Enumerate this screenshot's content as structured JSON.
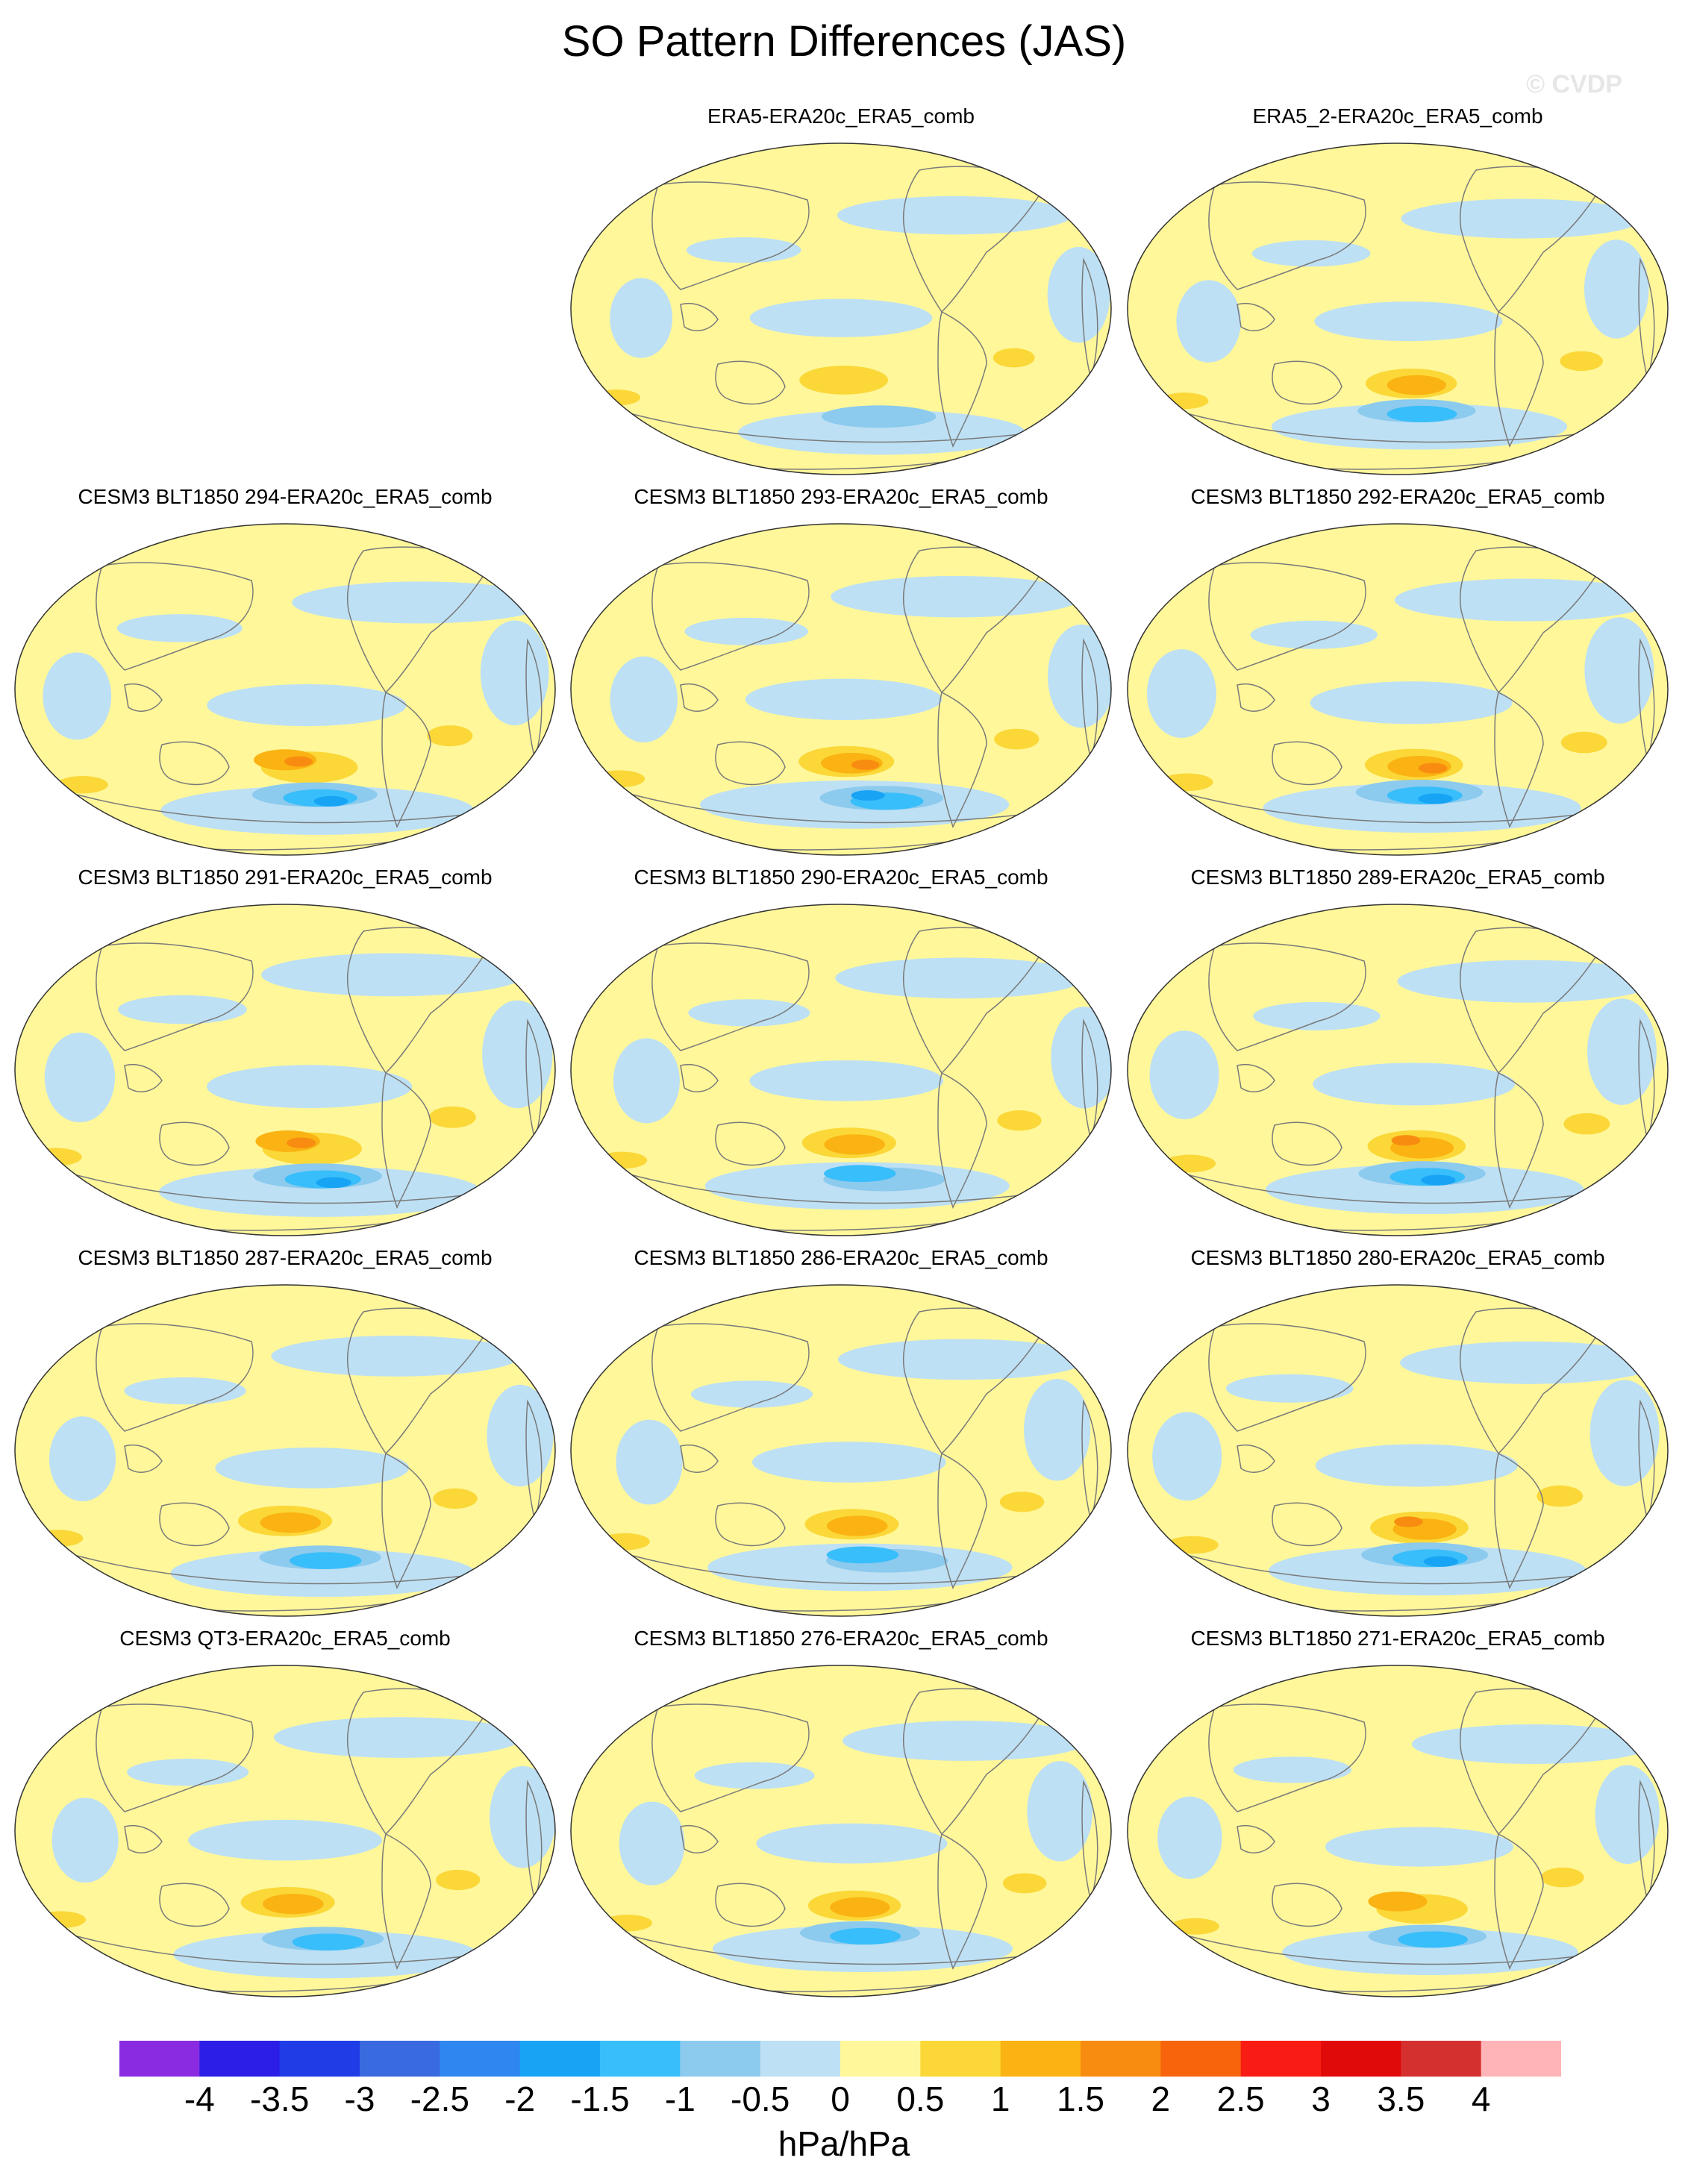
{
  "title": "SO Pattern Differences (JAS)",
  "watermark": "© CVDP",
  "panels": [
    {
      "label": "ERA5-ERA20c_ERA5_comb",
      "amplitude": 0.55
    },
    {
      "label": "ERA5_2-ERA20c_ERA5_comb",
      "amplitude": 0.65
    },
    {
      "label": "CESM3 BLT1850 294-ERA20c_ERA5_comb",
      "amplitude": 0.85
    },
    {
      "label": "CESM3 BLT1850 293-ERA20c_ERA5_comb",
      "amplitude": 0.8
    },
    {
      "label": "CESM3 BLT1850 292-ERA20c_ERA5_comb",
      "amplitude": 0.9
    },
    {
      "label": "CESM3 BLT1850 291-ERA20c_ERA5_comb",
      "amplitude": 0.95
    },
    {
      "label": "CESM3 BLT1850 290-ERA20c_ERA5_comb",
      "amplitude": 0.75
    },
    {
      "label": "CESM3 BLT1850 289-ERA20c_ERA5_comb",
      "amplitude": 0.9
    },
    {
      "label": "CESM3 BLT1850 287-ERA20c_ERA5_comb",
      "amplitude": 0.75
    },
    {
      "label": "CESM3 BLT1850 286-ERA20c_ERA5_comb",
      "amplitude": 0.75
    },
    {
      "label": "CESM3 BLT1850 280-ERA20c_ERA5_comb",
      "amplitude": 0.9
    },
    {
      "label": "CESM3 QT3-ERA20c_ERA5_comb",
      "amplitude": 0.75
    },
    {
      "label": "CESM3 BLT1850 276-ERA20c_ERA5_comb",
      "amplitude": 0.7
    },
    {
      "label": "CESM3 BLT1850 271-ERA20c_ERA5_comb",
      "amplitude": 0.65
    }
  ],
  "colorbar": {
    "colors": [
      "#8a2be2",
      "#2c1ee6",
      "#1f3ce6",
      "#3a6ae0",
      "#2f86f0",
      "#18a4f5",
      "#38befa",
      "#8ccaee",
      "#bde0f4",
      "#fff79a",
      "#fbd838",
      "#fab312",
      "#f88c10",
      "#f8640c",
      "#f81c14",
      "#e00a0a",
      "#d43030",
      "#ffb4b8"
    ],
    "labels": [
      "-4",
      "-3.5",
      "-3",
      "-2.5",
      "-2",
      "-1.5",
      "-1",
      "-0.5",
      "0",
      "0.5",
      "1",
      "1.5",
      "2",
      "2.5",
      "3",
      "3.5",
      "4"
    ],
    "units": "hPa/hPa"
  }
}
